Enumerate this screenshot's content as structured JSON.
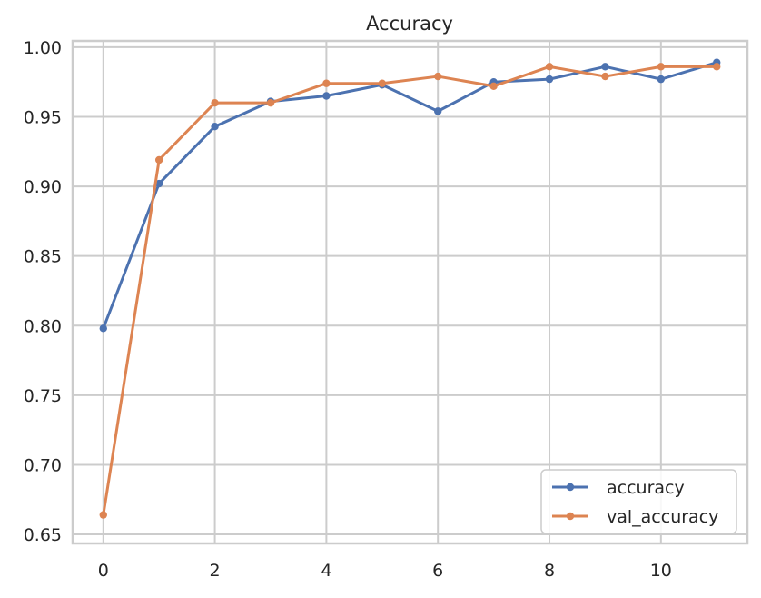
{
  "chart_data": {
    "type": "line",
    "title": "Accuracy",
    "xlabel": "",
    "ylabel": "",
    "xlim": [
      -0.55,
      11.55
    ],
    "ylim": [
      0.6435,
      1.0045
    ],
    "xticks": [
      0,
      2,
      4,
      6,
      8,
      10
    ],
    "xtick_labels": [
      "0",
      "2",
      "4",
      "6",
      "8",
      "10"
    ],
    "yticks": [
      0.65,
      0.7,
      0.75,
      0.8,
      0.85,
      0.9,
      0.95,
      1.0
    ],
    "ytick_labels": [
      "0.65",
      "0.70",
      "0.75",
      "0.80",
      "0.85",
      "0.90",
      "0.95",
      "1.00"
    ],
    "grid": true,
    "legend_position": "lower-right",
    "x": [
      0,
      1,
      2,
      3,
      4,
      5,
      6,
      7,
      8,
      9,
      10,
      11
    ],
    "series": [
      {
        "name": "accuracy",
        "color": "#4c72b0",
        "values": [
          0.798,
          0.902,
          0.943,
          0.961,
          0.965,
          0.973,
          0.954,
          0.975,
          0.977,
          0.986,
          0.977,
          0.989
        ]
      },
      {
        "name": "val_accuracy",
        "color": "#dd8452",
        "values": [
          0.664,
          0.919,
          0.96,
          0.96,
          0.974,
          0.974,
          0.979,
          0.972,
          0.986,
          0.979,
          0.986,
          0.986
        ]
      }
    ]
  }
}
